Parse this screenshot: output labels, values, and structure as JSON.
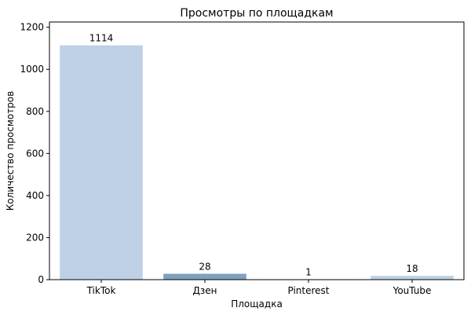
{
  "chart_data": {
    "type": "bar",
    "title": "Просмотры по площадкам",
    "xlabel": "Площадка",
    "ylabel": "Количество просмотров",
    "categories": [
      "TikTok",
      "Дзен",
      "Pinterest",
      "YouTube"
    ],
    "values": [
      1114,
      28,
      1,
      18
    ],
    "data_labels": [
      "1114",
      "28",
      "1",
      "18"
    ],
    "colors": [
      "#bdd0e6",
      "#7fa1bd",
      "#4a6e8e",
      "#bdd0e6"
    ],
    "ylim": [
      0,
      1225
    ],
    "yticks": [
      0,
      200,
      400,
      600,
      800,
      1000,
      1200
    ],
    "grid": false,
    "legend": "none"
  }
}
